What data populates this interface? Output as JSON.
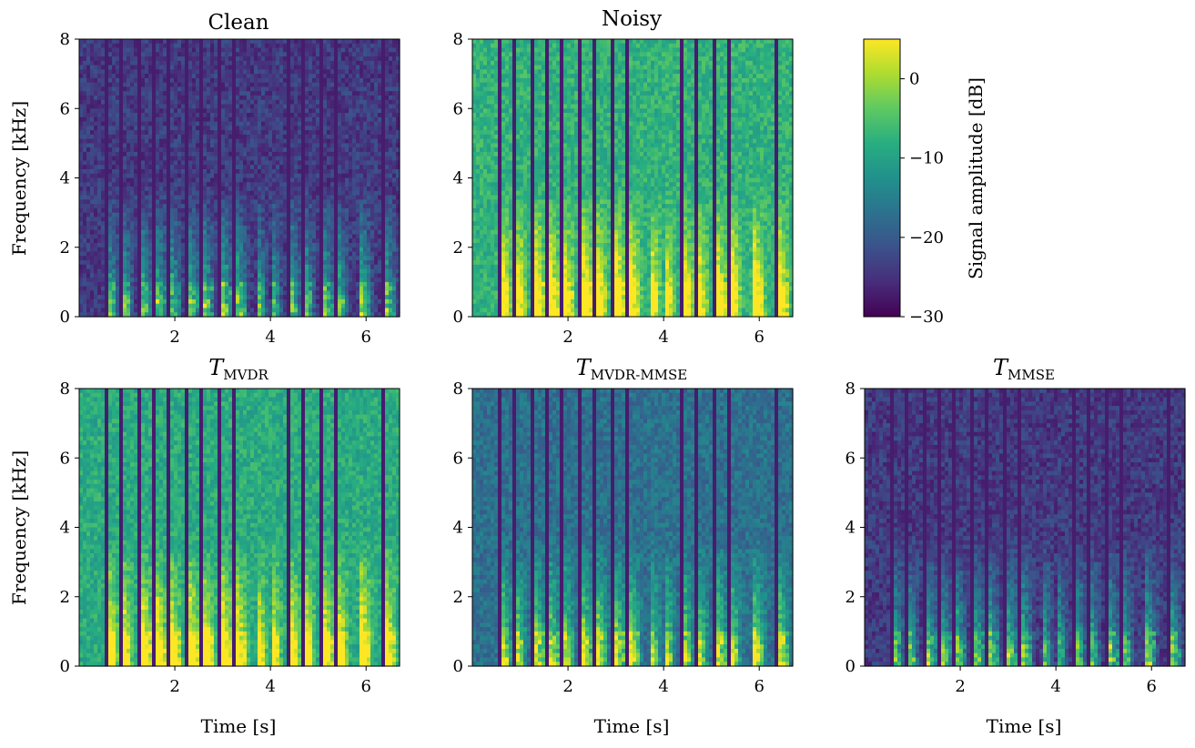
{
  "colorbar": {
    "label": "Signal amplitude [dB]",
    "ticks": [
      0,
      -10,
      -20,
      -30
    ],
    "tick_labels": [
      "0",
      "−10",
      "−20",
      "−30"
    ],
    "range": [
      -30,
      5
    ],
    "colormap": "viridis"
  },
  "chart_data": [
    {
      "type": "heatmap",
      "title": "Clean",
      "title_sub": "",
      "xlabel": "",
      "ylabel": "Frequency [kHz]",
      "xlim": [
        0,
        6.7
      ],
      "ylim": [
        0,
        8
      ],
      "xticks": [
        2,
        4,
        6
      ],
      "xtick_labels": [
        "2",
        "4",
        "6"
      ],
      "yticks": [
        0,
        2,
        4,
        6,
        8
      ],
      "ytick_labels": [
        "0",
        "2",
        "4",
        "6",
        "8"
      ],
      "noise_floor": "low"
    },
    {
      "type": "heatmap",
      "title": "Noisy",
      "title_sub": "",
      "xlabel": "",
      "ylabel": "",
      "xlim": [
        0,
        6.7
      ],
      "ylim": [
        0,
        8
      ],
      "xticks": [
        2,
        4,
        6
      ],
      "xtick_labels": [
        "2",
        "4",
        "6"
      ],
      "yticks": [
        0,
        2,
        4,
        6,
        8
      ],
      "ytick_labels": [
        "0",
        "2",
        "4",
        "6",
        "8"
      ],
      "noise_floor": "high"
    },
    {
      "type": "heatmap",
      "title": "T",
      "title_sub": "MVDR",
      "xlabel": "Time [s]",
      "ylabel": "Frequency [kHz]",
      "xlim": [
        0,
        6.7
      ],
      "ylim": [
        0,
        8
      ],
      "xticks": [
        2,
        4,
        6
      ],
      "xtick_labels": [
        "2",
        "4",
        "6"
      ],
      "yticks": [
        0,
        2,
        4,
        6,
        8
      ],
      "ytick_labels": [
        "0",
        "2",
        "4",
        "6",
        "8"
      ],
      "noise_floor": "medium-high"
    },
    {
      "type": "heatmap",
      "title": "T",
      "title_sub": "MVDR-MMSE",
      "xlabel": "Time [s]",
      "ylabel": "",
      "xlim": [
        0,
        6.7
      ],
      "ylim": [
        0,
        8
      ],
      "xticks": [
        2,
        4,
        6
      ],
      "xtick_labels": [
        "2",
        "4",
        "6"
      ],
      "yticks": [
        0,
        2,
        4,
        6,
        8
      ],
      "ytick_labels": [
        "0",
        "2",
        "4",
        "6",
        "8"
      ],
      "noise_floor": "medium"
    },
    {
      "type": "heatmap",
      "title": "T",
      "title_sub": "MMSE",
      "xlabel": "Time [s]",
      "ylabel": "",
      "xlim": [
        0,
        6.7
      ],
      "ylim": [
        0,
        8
      ],
      "xticks": [
        2,
        4,
        6
      ],
      "xtick_labels": [
        "2",
        "4",
        "6"
      ],
      "yticks": [
        0,
        2,
        4,
        6,
        8
      ],
      "ytick_labels": [
        "0",
        "2",
        "4",
        "6",
        "8"
      ],
      "noise_floor": "low"
    }
  ]
}
